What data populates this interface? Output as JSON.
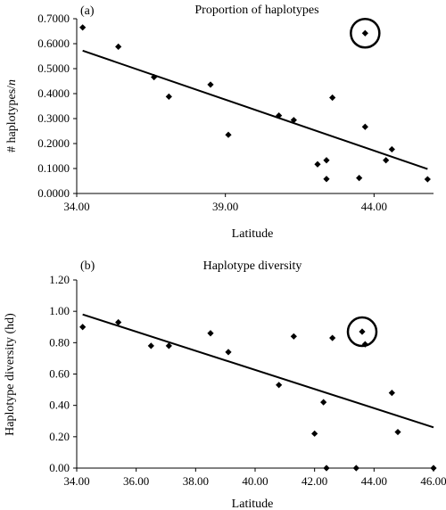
{
  "chart_data": [
    {
      "type": "scatter",
      "panel_label": "(a)",
      "title": "Proportion of haplotypes",
      "xlabel": "Latitude",
      "ylabel_prefix": "# haplotypes/",
      "ylabel_italic": "n",
      "xlim": [
        34.0,
        46.0
      ],
      "ylim": [
        0.0,
        0.7
      ],
      "xticks": [
        34.0,
        39.0,
        44.0
      ],
      "xtick_labels": [
        "34.00",
        "39.00",
        "44.00"
      ],
      "yticks": [
        0.0,
        0.1,
        0.2,
        0.3,
        0.4,
        0.5,
        0.6,
        0.7
      ],
      "ytick_labels": [
        "0.0000",
        "0.1000",
        "0.2000",
        "0.3000",
        "0.4000",
        "0.5000",
        "0.6000",
        "0.7000"
      ],
      "grid": false,
      "points": [
        {
          "x": 34.2,
          "y": 0.665
        },
        {
          "x": 35.4,
          "y": 0.588
        },
        {
          "x": 36.6,
          "y": 0.466
        },
        {
          "x": 37.1,
          "y": 0.388
        },
        {
          "x": 38.5,
          "y": 0.436
        },
        {
          "x": 39.1,
          "y": 0.235
        },
        {
          "x": 40.8,
          "y": 0.312
        },
        {
          "x": 41.3,
          "y": 0.294
        },
        {
          "x": 42.1,
          "y": 0.117
        },
        {
          "x": 42.4,
          "y": 0.133
        },
        {
          "x": 42.4,
          "y": 0.058
        },
        {
          "x": 42.6,
          "y": 0.384
        },
        {
          "x": 43.5,
          "y": 0.062
        },
        {
          "x": 43.7,
          "y": 0.267
        },
        {
          "x": 43.7,
          "y": 0.642
        },
        {
          "x": 44.4,
          "y": 0.133
        },
        {
          "x": 44.6,
          "y": 0.177
        },
        {
          "x": 45.8,
          "y": 0.057
        }
      ],
      "trendline": {
        "x": [
          34.2,
          45.8
        ],
        "y": [
          0.572,
          0.098
        ]
      },
      "highlight": {
        "x": 43.7,
        "y": 0.642
      }
    },
    {
      "type": "scatter",
      "panel_label": "(b)",
      "title": "Haplotype diversity",
      "xlabel": "Latitude",
      "ylabel": "Haplotype diversity (hd)",
      "xlim": [
        34.0,
        46.0
      ],
      "ylim": [
        0.0,
        1.2
      ],
      "xticks": [
        34,
        36,
        38,
        40,
        42,
        44,
        46
      ],
      "xtick_labels": [
        "34.00",
        "36.00",
        "38.00",
        "40.00",
        "42.00",
        "44.00",
        "46.00"
      ],
      "yticks": [
        0.0,
        0.2,
        0.4,
        0.6,
        0.8,
        1.0,
        1.2
      ],
      "ytick_labels": [
        "0.00",
        "0.20",
        "0.40",
        "0.60",
        "0.80",
        "1.00",
        "1.20"
      ],
      "grid": false,
      "points": [
        {
          "x": 34.2,
          "y": 0.9
        },
        {
          "x": 35.4,
          "y": 0.93
        },
        {
          "x": 36.5,
          "y": 0.78
        },
        {
          "x": 37.1,
          "y": 0.78
        },
        {
          "x": 38.5,
          "y": 0.86
        },
        {
          "x": 39.1,
          "y": 0.74
        },
        {
          "x": 40.8,
          "y": 0.53
        },
        {
          "x": 41.3,
          "y": 0.84
        },
        {
          "x": 42.0,
          "y": 0.22
        },
        {
          "x": 42.3,
          "y": 0.42
        },
        {
          "x": 42.4,
          "y": 0.0
        },
        {
          "x": 42.6,
          "y": 0.83
        },
        {
          "x": 43.4,
          "y": 0.0
        },
        {
          "x": 43.6,
          "y": 0.87
        },
        {
          "x": 43.7,
          "y": 0.79
        },
        {
          "x": 44.6,
          "y": 0.48
        },
        {
          "x": 44.8,
          "y": 0.23
        },
        {
          "x": 46.0,
          "y": 0.0
        }
      ],
      "trendline": {
        "x": [
          34.2,
          46.0
        ],
        "y": [
          0.98,
          0.26
        ]
      },
      "highlight": {
        "x": 43.6,
        "y": 0.87
      }
    }
  ]
}
